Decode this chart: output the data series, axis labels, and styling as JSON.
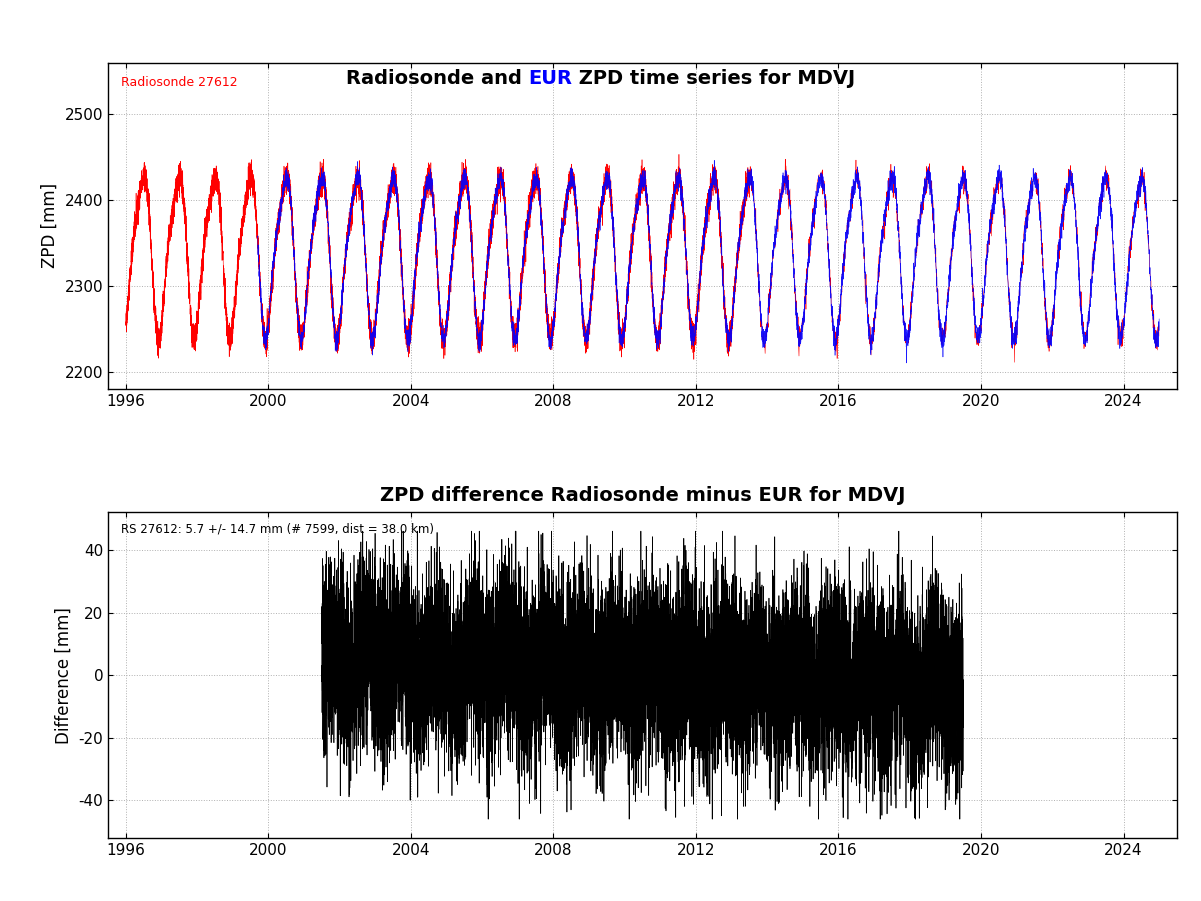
{
  "title1_parts": [
    "Radiosonde and ",
    "EUR",
    " ZPD time series for MDVJ"
  ],
  "title1_colors": [
    "black",
    "blue",
    "black"
  ],
  "title2": "ZPD difference Radiosonde minus EUR for MDVJ",
  "ylabel1": "ZPD [mm]",
  "ylabel2": "Difference [mm]",
  "radiosonde_label": "Radiosonde 27612",
  "annotation": "RS 27612: 5.7 +/- 14.7 mm (# 7599, dist = 38.0 km)",
  "ylim1": [
    2180,
    2560
  ],
  "ylim2": [
    -52,
    52
  ],
  "yticks1": [
    2200,
    2300,
    2400,
    2500
  ],
  "yticks2": [
    -40,
    -20,
    0,
    20,
    40
  ],
  "xlim": [
    1995.5,
    2025.5
  ],
  "xticks": [
    1996,
    2000,
    2004,
    2008,
    2012,
    2016,
    2020,
    2024
  ],
  "rs_start_year": 1996.0,
  "rs_end_year": 2025.0,
  "epn_start_year": 1999.7,
  "epn_end_year": 2025.0,
  "diff_start_year": 2001.5,
  "diff_end_year": 2019.5,
  "mean_diff": 5.7,
  "std_diff": 14.7,
  "seed": 42,
  "zpd_base": 2340,
  "zpd_amplitude": 90,
  "background_color": "#ffffff",
  "radiosonde_color": "#ff0000",
  "epn_color": "#0000ff",
  "diff_color": "#000000",
  "grid_color": "#b0b0b0",
  "grid_style": ":"
}
